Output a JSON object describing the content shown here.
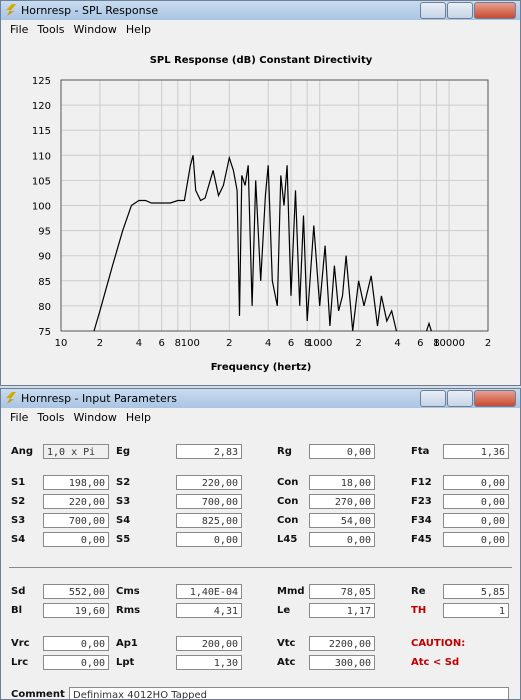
{
  "spl_window": {
    "title": "Hornresp - SPL Response",
    "menu": [
      "File",
      "Tools",
      "Window",
      "Help"
    ]
  },
  "chart_data": {
    "type": "line",
    "title": "SPL Response (dB)   Constant Directivity",
    "x_label": "Frequency (hertz)",
    "log_x": true,
    "grid": true,
    "x": [
      18,
      20,
      25,
      30,
      35,
      40,
      45,
      50,
      60,
      70,
      80,
      90,
      100,
      105,
      110,
      120,
      130,
      150,
      165,
      180,
      200,
      215,
      230,
      240,
      250,
      265,
      280,
      300,
      320,
      350,
      380,
      400,
      430,
      470,
      500,
      530,
      560,
      600,
      650,
      700,
      750,
      800,
      900,
      1000,
      1100,
      1200,
      1300,
      1400,
      1500,
      1600,
      1800,
      2000,
      2200,
      2500,
      2800,
      3000,
      3300,
      3600,
      4000,
      5000,
      6500,
      7000,
      7500
    ],
    "series": [
      {
        "color": "#000000",
        "values": [
          75,
          79,
          88,
          95,
          100,
          101,
          101,
          100.5,
          100.5,
          100.5,
          101,
          101,
          108,
          110,
          103,
          101,
          101.5,
          107,
          102,
          104,
          109.5,
          107,
          103,
          78,
          106,
          104,
          108,
          80,
          105,
          85,
          102,
          108,
          85,
          80,
          106,
          100,
          108,
          82,
          103,
          80,
          98,
          77,
          96,
          80,
          92,
          76,
          88,
          79,
          82,
          90,
          75,
          85,
          80,
          86,
          76,
          82,
          77,
          79,
          74,
          null,
          74,
          76.5,
          74
        ]
      }
    ],
    "xlim": [
      10,
      20000
    ],
    "ylim": [
      75,
      125
    ],
    "yticks": [
      75,
      80,
      85,
      90,
      95,
      100,
      105,
      110,
      115,
      120,
      125
    ],
    "xticks": [
      10,
      {
        "value": 20,
        "label": "2"
      },
      {
        "value": 40,
        "label": "4"
      },
      {
        "value": 60,
        "label": "6"
      },
      {
        "value": 80,
        "label": "8"
      },
      100,
      {
        "value": 200,
        "label": "2"
      },
      {
        "value": 400,
        "label": "4"
      },
      {
        "value": 600,
        "label": "6"
      },
      {
        "value": 800,
        "label": "8"
      },
      1000,
      {
        "value": 2000,
        "label": "2"
      },
      {
        "value": 4000,
        "label": "4"
      },
      {
        "value": 6000,
        "label": "6"
      },
      {
        "value": 8000,
        "label": "8"
      },
      10000,
      {
        "value": 20000,
        "label": "2"
      }
    ]
  },
  "input_window": {
    "title": "Hornresp - Input Parameters",
    "menu": [
      "File",
      "Tools",
      "Window",
      "Help"
    ],
    "rows": [
      [
        {
          "label": "Ang",
          "value": "1,0 x Pi"
        },
        {
          "label": "Eg",
          "value": "2,83"
        },
        {
          "label": "Rg",
          "value": "0,00"
        },
        {
          "label": "Fta",
          "value": "1,36"
        }
      ],
      [
        {
          "label": "S1",
          "value": "198,00"
        },
        {
          "label": "S2",
          "value": "220,00"
        },
        {
          "label": "Con",
          "value": "18,00"
        },
        {
          "label": "F12",
          "value": "0,00"
        }
      ],
      [
        {
          "label": "S2",
          "value": "220,00"
        },
        {
          "label": "S3",
          "value": "700,00"
        },
        {
          "label": "Con",
          "value": "270,00"
        },
        {
          "label": "F23",
          "value": "0,00"
        }
      ],
      [
        {
          "label": "S3",
          "value": "700,00"
        },
        {
          "label": "S4",
          "value": "825,00"
        },
        {
          "label": "Con",
          "value": "54,00"
        },
        {
          "label": "F34",
          "value": "0,00"
        }
      ],
      [
        {
          "label": "S4",
          "value": "0,00"
        },
        {
          "label": "S5",
          "value": "0,00"
        },
        {
          "label": "L45",
          "value": "0,00"
        },
        {
          "label": "F45",
          "value": "0,00"
        }
      ],
      [
        {
          "label": "Sd",
          "value": "552,00"
        },
        {
          "label": "Cms",
          "value": "1,40E-04"
        },
        {
          "label": "Mmd",
          "value": "78,05"
        },
        {
          "label": "Re",
          "value": "5,85"
        }
      ],
      [
        {
          "label": "Bl",
          "value": "19,60"
        },
        {
          "label": "Rms",
          "value": "4,31"
        },
        {
          "label": "Le",
          "value": "1,17"
        },
        {
          "label": "TH",
          "value": "1",
          "color": "#c00000"
        }
      ],
      [
        {
          "label": "Vrc",
          "value": "0,00"
        },
        {
          "label": "Ap1",
          "value": "200,00"
        },
        {
          "label": "Vtc",
          "value": "2200,00"
        },
        {
          "label": "CAUTION:",
          "color": "#c00000"
        }
      ],
      [
        {
          "label": "Lrc",
          "value": "0,00"
        },
        {
          "label": "Lpt",
          "value": "1,30"
        },
        {
          "label": "Atc",
          "value": "300,00"
        },
        {
          "label": "Atc < Sd",
          "color": "#c00000"
        }
      ]
    ],
    "comment_label": "Comment",
    "comment": "Definimax 4012HO Tapped"
  }
}
